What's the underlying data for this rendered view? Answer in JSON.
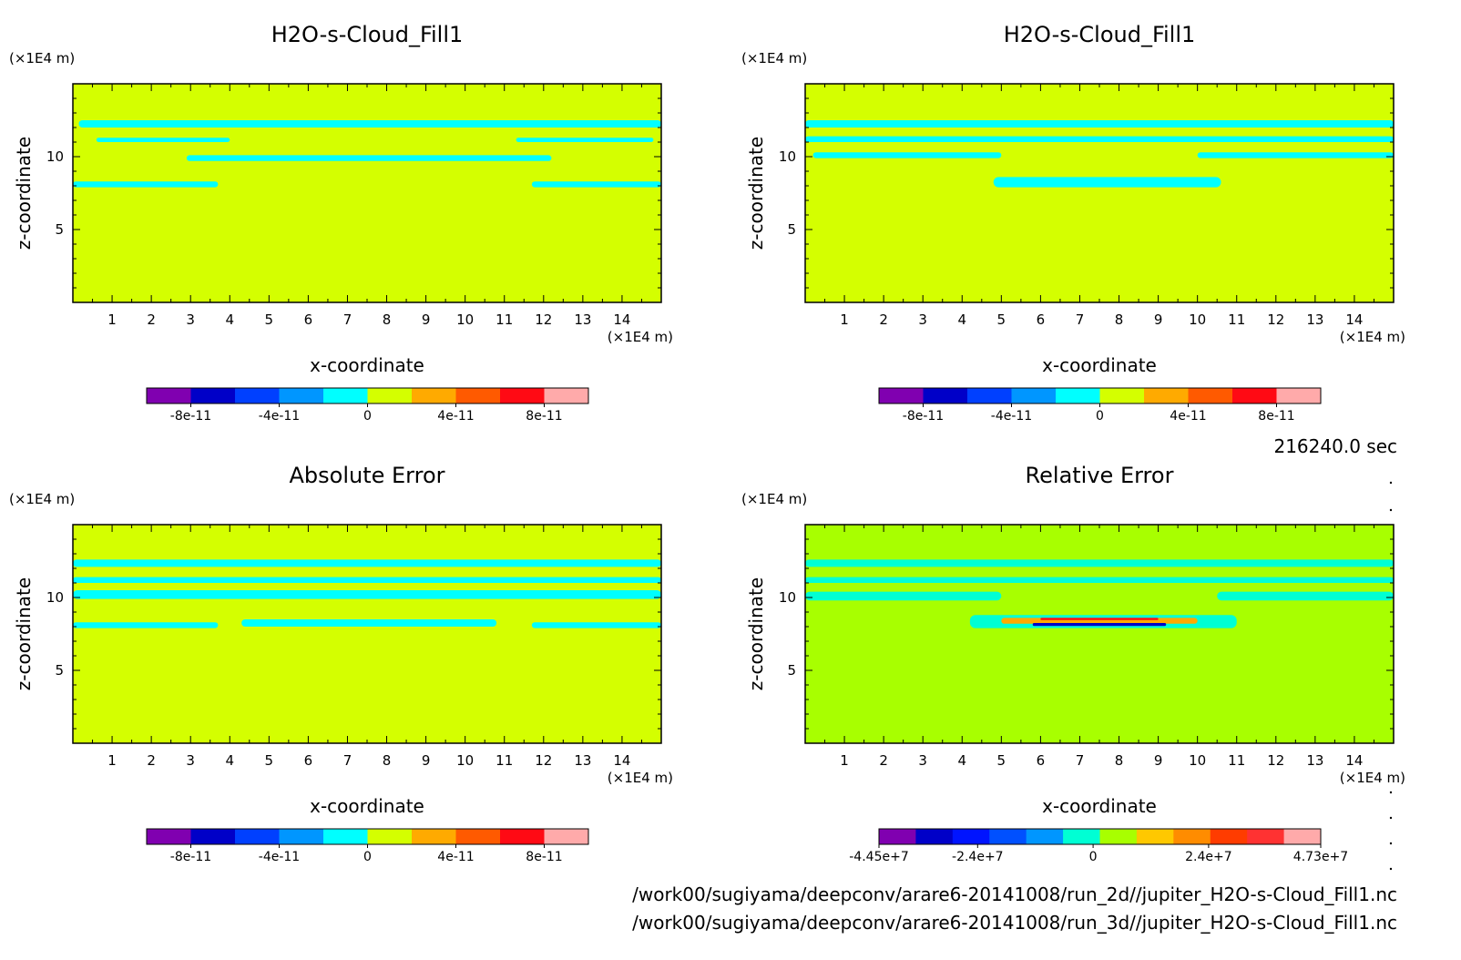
{
  "time_label": "216240.0 sec",
  "footer": {
    "file1": "/work00/sugiyama/deepconv/arare6-20141008/run_2d//jupiter_H2O-s-Cloud_Fill1.nc",
    "file2": "/work00/sugiyama/deepconv/arare6-20141008/run_3d//jupiter_H2O-s-Cloud_Fill1.nc"
  },
  "colors": {
    "background_field": "#d4ff00",
    "relative_background": "#a8ff00",
    "cloud_band": "#00ffff",
    "relative_band": "#00ffd4"
  },
  "chart_data": [
    {
      "type": "heatmap",
      "title": "H2O-s-Cloud_Fill1",
      "xlabel": "x-coordinate",
      "ylabel": "z-coordinate",
      "x_unit": "(×1E4 m)",
      "y_unit": "(×1E4 m)",
      "xlim": [
        0,
        15
      ],
      "ylim": [
        0,
        15
      ],
      "xticks": [
        1,
        2,
        3,
        4,
        5,
        6,
        7,
        8,
        9,
        10,
        11,
        12,
        13,
        14
      ],
      "yticks": [
        5,
        10
      ],
      "field_color": "#d4ff00",
      "band_color": "#00ffff",
      "bands": [
        {
          "x0": 0.15,
          "x1": 15.0,
          "z0": 12.0,
          "z1": 12.5
        },
        {
          "x0": 0.6,
          "x1": 4.0,
          "z0": 11.0,
          "z1": 11.3
        },
        {
          "x0": 11.3,
          "x1": 14.8,
          "z0": 11.0,
          "z1": 11.3
        },
        {
          "x0": 2.9,
          "x1": 12.2,
          "z0": 9.7,
          "z1": 10.1
        },
        {
          "x0": 0.0,
          "x1": 3.7,
          "z0": 7.9,
          "z1": 8.3
        },
        {
          "x0": 11.7,
          "x1": 15.0,
          "z0": 7.9,
          "z1": 8.3
        }
      ],
      "colorbar": {
        "colors": [
          "#8000b0",
          "#0000c8",
          "#0040ff",
          "#0096ff",
          "#00ffff",
          "#d4ff00",
          "#ffaa00",
          "#ff5a00",
          "#ff0a14",
          "#ffaaaa"
        ],
        "tick_labels": [
          "-8e-11",
          "-4e-11",
          "0",
          "4e-11",
          "8e-11"
        ],
        "tick_values": [
          -8e-11,
          -4e-11,
          0,
          4e-11,
          8e-11
        ],
        "range": [
          -1e-10,
          1e-10
        ]
      }
    },
    {
      "type": "heatmap",
      "title": "H2O-s-Cloud_Fill1",
      "xlabel": "x-coordinate",
      "ylabel": "z-coordinate",
      "x_unit": "(×1E4 m)",
      "y_unit": "(×1E4 m)",
      "xlim": [
        0,
        15
      ],
      "ylim": [
        0,
        15
      ],
      "xticks": [
        1,
        2,
        3,
        4,
        5,
        6,
        7,
        8,
        9,
        10,
        11,
        12,
        13,
        14
      ],
      "yticks": [
        5,
        10
      ],
      "field_color": "#d4ff00",
      "band_color": "#00ffff",
      "bands": [
        {
          "x0": 0.0,
          "x1": 15.0,
          "z0": 12.0,
          "z1": 12.5
        },
        {
          "x0": 0.0,
          "x1": 15.0,
          "z0": 11.0,
          "z1": 11.4
        },
        {
          "x0": 0.2,
          "x1": 5.0,
          "z0": 9.9,
          "z1": 10.3
        },
        {
          "x0": 10.0,
          "x1": 15.0,
          "z0": 9.9,
          "z1": 10.3
        },
        {
          "x0": 4.8,
          "x1": 10.6,
          "z0": 7.9,
          "z1": 8.6
        }
      ],
      "colorbar": {
        "colors": [
          "#8000b0",
          "#0000c8",
          "#0040ff",
          "#0096ff",
          "#00ffff",
          "#d4ff00",
          "#ffaa00",
          "#ff5a00",
          "#ff0a14",
          "#ffaaaa"
        ],
        "tick_labels": [
          "-8e-11",
          "-4e-11",
          "0",
          "4e-11",
          "8e-11"
        ],
        "tick_values": [
          -8e-11,
          -4e-11,
          0,
          4e-11,
          8e-11
        ],
        "range": [
          -1e-10,
          1e-10
        ]
      }
    },
    {
      "type": "heatmap",
      "title": "Absolute Error",
      "xlabel": "x-coordinate",
      "ylabel": "z-coordinate",
      "x_unit": "(×1E4 m)",
      "y_unit": "(×1E4 m)",
      "xlim": [
        0,
        15
      ],
      "ylim": [
        0,
        15
      ],
      "xticks": [
        1,
        2,
        3,
        4,
        5,
        6,
        7,
        8,
        9,
        10,
        11,
        12,
        13,
        14
      ],
      "yticks": [
        5,
        10
      ],
      "field_color": "#d4ff00",
      "band_color": "#00ffff",
      "bands": [
        {
          "x0": 0.0,
          "x1": 15.0,
          "z0": 12.1,
          "z1": 12.6
        },
        {
          "x0": 0.0,
          "x1": 15.0,
          "z0": 11.0,
          "z1": 11.4
        },
        {
          "x0": 0.0,
          "x1": 15.0,
          "z0": 9.9,
          "z1": 10.5
        },
        {
          "x0": 0.0,
          "x1": 3.7,
          "z0": 7.9,
          "z1": 8.3
        },
        {
          "x0": 4.3,
          "x1": 10.8,
          "z0": 8.0,
          "z1": 8.5
        },
        {
          "x0": 11.7,
          "x1": 15.0,
          "z0": 7.9,
          "z1": 8.3
        }
      ],
      "colorbar": {
        "colors": [
          "#8000b0",
          "#0000c8",
          "#0040ff",
          "#0096ff",
          "#00ffff",
          "#d4ff00",
          "#ffaa00",
          "#ff5a00",
          "#ff0a14",
          "#ffaaaa"
        ],
        "tick_labels": [
          "-8e-11",
          "-4e-11",
          "0",
          "4e-11",
          "8e-11"
        ],
        "tick_values": [
          -8e-11,
          -4e-11,
          0,
          4e-11,
          8e-11
        ],
        "range": [
          -1e-10,
          1e-10
        ]
      }
    },
    {
      "type": "heatmap",
      "title": "Relative Error",
      "xlabel": "x-coordinate",
      "ylabel": "z-coordinate",
      "x_unit": "(×1E4 m)",
      "y_unit": "(×1E4 m)",
      "xlim": [
        0,
        15
      ],
      "ylim": [
        0,
        15
      ],
      "xticks": [
        1,
        2,
        3,
        4,
        5,
        6,
        7,
        8,
        9,
        10,
        11,
        12,
        13,
        14
      ],
      "yticks": [
        5,
        10
      ],
      "field_color": "#a8ff00",
      "band_color": "#00ffd4",
      "bands": [
        {
          "x0": 0.0,
          "x1": 15.0,
          "z0": 12.1,
          "z1": 12.6
        },
        {
          "x0": 0.0,
          "x1": 15.0,
          "z0": 11.0,
          "z1": 11.4
        },
        {
          "x0": 0.0,
          "x1": 5.0,
          "z0": 9.8,
          "z1": 10.4
        },
        {
          "x0": 10.5,
          "x1": 15.0,
          "z0": 9.8,
          "z1": 10.4
        },
        {
          "x0": 4.2,
          "x1": 11.0,
          "z0": 7.9,
          "z1": 8.8
        }
      ],
      "hotspots": [
        {
          "x0": 5.0,
          "x1": 10.0,
          "z0": 8.2,
          "z1": 8.6,
          "color": "#ffaa00"
        },
        {
          "x0": 6.0,
          "x1": 9.0,
          "z0": 8.45,
          "z1": 8.6,
          "color": "#ff0a14"
        },
        {
          "x0": 5.8,
          "x1": 9.2,
          "z0": 8.05,
          "z1": 8.25,
          "color": "#0000c8"
        }
      ],
      "colorbar": {
        "colors": [
          "#8000b0",
          "#0000c8",
          "#0014ff",
          "#0050ff",
          "#0096ff",
          "#00ffd4",
          "#a8ff00",
          "#ffc800",
          "#ff8c00",
          "#ff3c00",
          "#ff3232",
          "#ffaaaa"
        ],
        "tick_labels": [
          "-4.45e+7",
          "-2.4e+7",
          "0",
          "2.4e+7",
          "4.73e+7"
        ],
        "tick_values": [
          -44500000.0,
          -24000000.0,
          0,
          24000000.0,
          47300000.0
        ],
        "range": [
          -44500000.0,
          47300000.0
        ]
      }
    }
  ]
}
